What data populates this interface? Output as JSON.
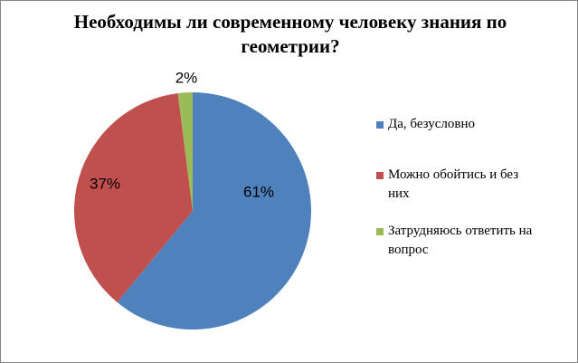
{
  "chart_data": {
    "type": "pie",
    "title": "Необходимы ли современному человеку знания по геометрии?",
    "categories": [
      "Да, безусловно",
      "Можно обойтись и без них",
      "Затрудняюсь ответить на вопрос"
    ],
    "values": [
      61,
      37,
      2
    ],
    "value_labels": [
      "61%",
      "37%",
      "2%"
    ],
    "colors": [
      "#4f81bd",
      "#c0504d",
      "#9bbb59"
    ],
    "legend": "right"
  }
}
